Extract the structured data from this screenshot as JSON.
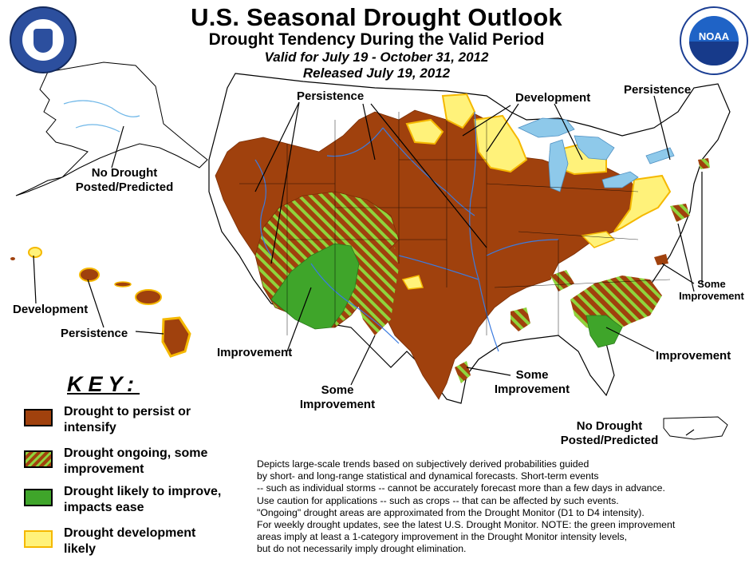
{
  "header": {
    "title": "U.S. Seasonal Drought Outlook",
    "subtitle": "Drought Tendency During the Valid Period",
    "valid": "Valid for July 19 - October 31, 2012",
    "released": "Released July 19, 2012"
  },
  "logos": {
    "left": "department-of-commerce-seal",
    "right": "noaa-logo",
    "noaa_text": "NOAA"
  },
  "map_labels": {
    "persistence_west": "Persistence",
    "development_north": "Development",
    "persistence_ne": "Persistence",
    "alaska_line1": "No Drought",
    "alaska_line2": "Posted/Predicted",
    "hawaii_development": "Development",
    "hawaii_persistence": "Persistence",
    "improvement_sw": "Improvement",
    "some_improvement_tx_line1": "Some",
    "some_improvement_tx_line2": "Improvement",
    "some_improvement_gulf_line1": "Some",
    "some_improvement_gulf_line2": "Improvement",
    "some_improvement_east_line1": "Some",
    "some_improvement_east_line2": "Improvement",
    "improvement_se": "Improvement",
    "pr_line1": "No Drought",
    "pr_line2": "Posted/Predicted"
  },
  "key": {
    "title": "KEY:",
    "items": [
      {
        "line1": "Drought to persist or",
        "line2": "intensify",
        "color": "#a0410d",
        "pattern": "solid"
      },
      {
        "line1": "Drought ongoing, some",
        "line2": "improvement",
        "color": "#a0410d",
        "stripe": "#8fd43c",
        "pattern": "hatched"
      },
      {
        "line1": "Drought likely to improve,",
        "line2": "impacts ease",
        "color": "#3fa52a",
        "pattern": "solid"
      },
      {
        "line1": "Drought development",
        "line2": "likely",
        "color": "#fff27a",
        "border": "#f5b800",
        "pattern": "solid"
      }
    ]
  },
  "notes": [
    "Depicts large-scale trends based on subjectively derived probabilities guided",
    "by short- and long-range statistical and dynamical forecasts. Short-term events",
    "-- such as individual storms -- cannot be accurately forecast more than a few days in advance.",
    "Use caution for applications -- such as crops -- that can be affected by such events.",
    "\"Ongoing\" drought areas are approximated from the Drought Monitor (D1 to D4 intensity).",
    "For weekly drought updates, see the latest U.S. Drought Monitor. NOTE: the green improvement",
    "areas imply at least a 1-category improvement in the Drought Monitor intensity levels,",
    "but do not necessarily imply drought elimination."
  ],
  "colors": {
    "persist": "#a0410d",
    "improve_stripe": "#8fd43c",
    "improve": "#3fa52a",
    "develop": "#fff27a",
    "develop_border": "#f5b800",
    "water": "#8ec9ea",
    "river": "#3b7be0"
  }
}
